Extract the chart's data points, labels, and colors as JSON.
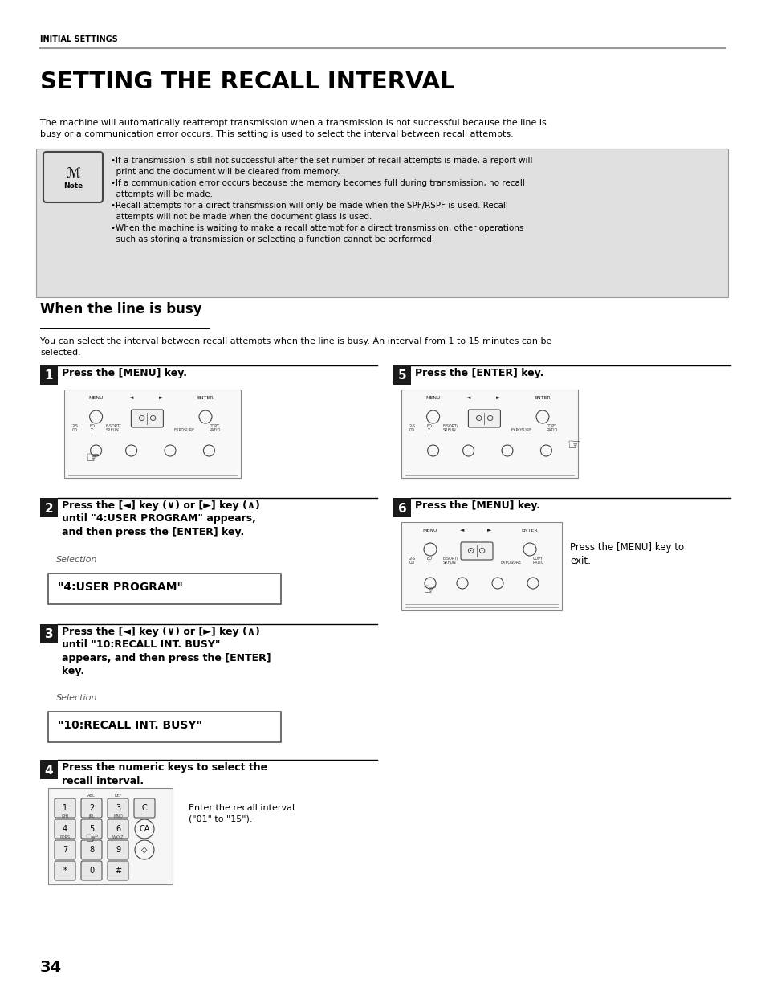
{
  "page_bg": "#ffffff",
  "header_text": "INITIAL SETTINGS",
  "header_line_color": "#999999",
  "title": "SETTING THE RECALL INTERVAL",
  "intro_text": "The machine will automatically reattempt transmission when a transmission is not successful because the line is\nbusy or a communication error occurs. This setting is used to select the interval between recall attempts.",
  "note_bg": "#e0e0e0",
  "note_border": "#999999",
  "note_bullets": "•If a transmission is still not successful after the set number of recall attempts is made, a report will\n  print and the document will be cleared from memory.\n•If a communication error occurs because the memory becomes full during transmission, no recall\n  attempts will be made.\n•Recall attempts for a direct transmission will only be made when the SPF/RSPF is used. Recall\n  attempts will not be made when the document glass is used.\n•When the machine is waiting to make a recall attempt for a direct transmission, other operations\n  such as storing a transmission or selecting a function cannot be performed.",
  "section_title": "When the line is busy",
  "section_intro": "You can select the interval between recall attempts when the line is busy. An interval from 1 to 15 minutes can be\nselected.",
  "step1_num": "1",
  "step1_text": "Press the [MENU] key.",
  "step2_num": "2",
  "step2_text": "Press the [◄] key (∨) or [►] key (∧)\nuntil \"4:USER PROGRAM\" appears,\nand then press the [ENTER] key.",
  "step3_num": "3",
  "step3_text": "Press the [◄] key (∨) or [►] key (∧)\nuntil \"10:RECALL INT. BUSY\"\nappears, and then press the [ENTER]\nkey.",
  "step4_num": "4",
  "step4_text": "Press the numeric keys to select the\nrecall interval.",
  "step4_note": "Enter the recall interval\n(\"01\" to \"15\").",
  "step5_num": "5",
  "step5_text": "Press the [ENTER] key.",
  "step6_num": "6",
  "step6_text": "Press the [MENU] key.",
  "step6_note": "Press the [MENU] key to\nexit.",
  "sel_label1": "Selection",
  "sel_box1": "\"4:USER PROGRAM\"",
  "sel_label2": "Selection",
  "sel_box2": "\"10:RECALL INT. BUSY\"",
  "page_num": "34",
  "step_bg": "#1a1a1a",
  "step_text_color": "#ffffff",
  "body_color": "#000000"
}
